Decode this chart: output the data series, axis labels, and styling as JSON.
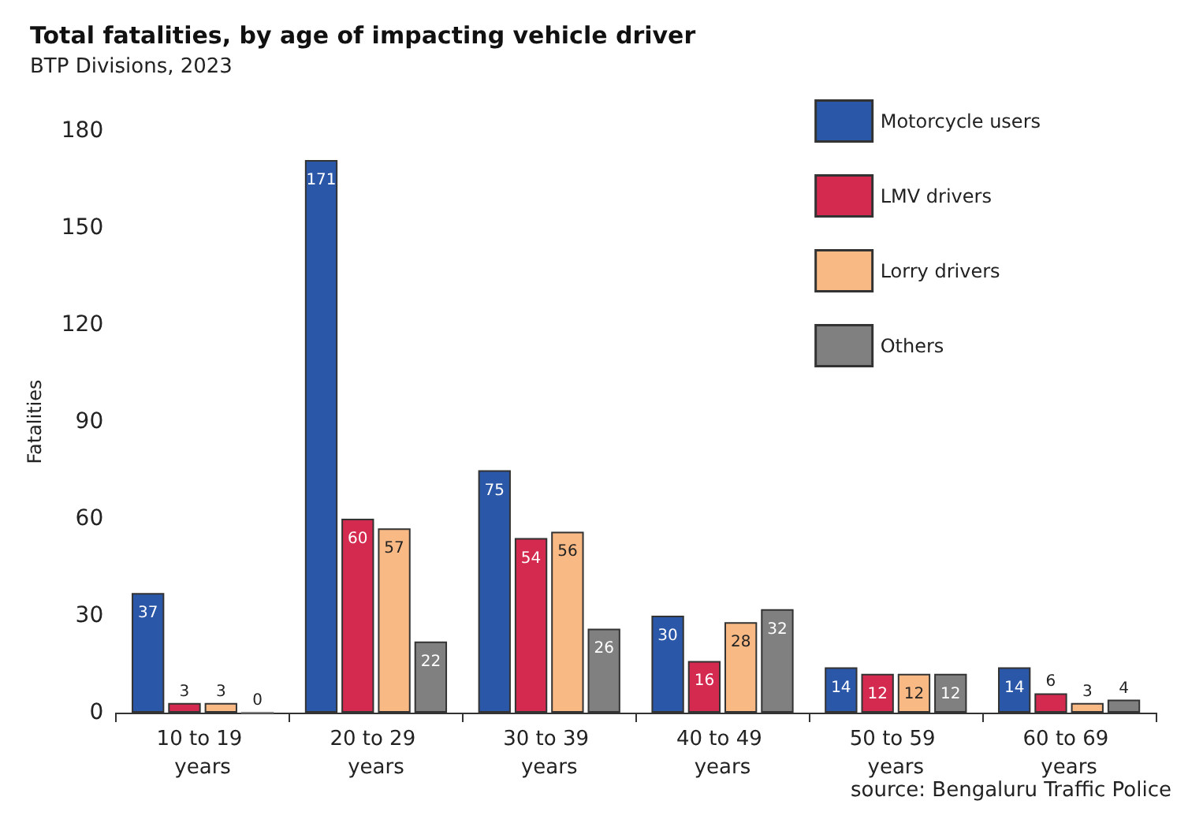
{
  "chart_data": {
    "type": "bar",
    "title": "Total fatalities, by age of impacting vehicle driver",
    "subtitle": "BTP Divisions, 2023",
    "ylabel": "Fatalities",
    "categories": [
      "10 to 19 years",
      "20 to 29 years",
      "30 to 39 years",
      "40 to 49 years",
      "50 to 59 years",
      "60 to 69 years"
    ],
    "series": [
      {
        "name": "Motorcycle users",
        "color": "#2b57a8",
        "values": [
          37,
          171,
          75,
          30,
          14,
          14
        ]
      },
      {
        "name": "LMV drivers",
        "color": "#d42a4f",
        "values": [
          3,
          60,
          54,
          16,
          12,
          6
        ]
      },
      {
        "name": "Lorry drivers",
        "color": "#f9b985",
        "values": [
          3,
          57,
          56,
          28,
          12,
          3
        ]
      },
      {
        "name": "Others",
        "color": "#808080",
        "values": [
          0,
          22,
          26,
          32,
          12,
          4
        ]
      }
    ],
    "ylim": [
      0,
      180
    ],
    "yticks": [
      0,
      30,
      60,
      90,
      120,
      150,
      180
    ],
    "grid": false,
    "legend": "top right",
    "data_labels": true,
    "annotations": [
      "source: Bengaluru Traffic Police"
    ]
  }
}
